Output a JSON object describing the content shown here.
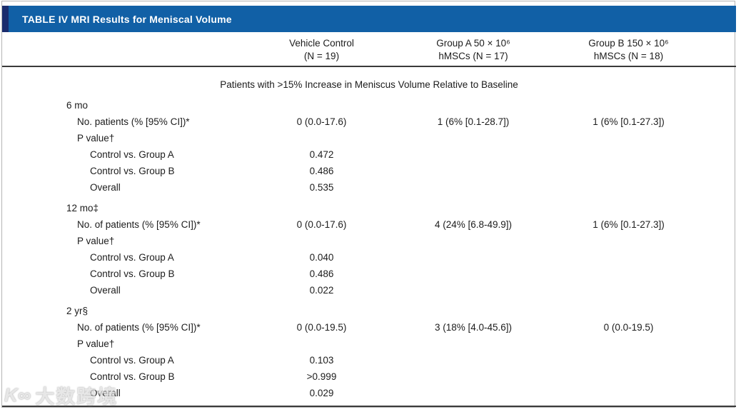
{
  "title_bar": {
    "title": "TABLE IV MRI Results for Meniscal Volume",
    "bg_color": "#1160a6",
    "accent_color": "#1a2d6e"
  },
  "columns": [
    {
      "line1": "Vehicle Control",
      "line2": "(N = 19)"
    },
    {
      "line1": "Group A 50 × 10⁶",
      "line2": "hMSCs (N = 17)"
    },
    {
      "line1": "Group B 150 × 10⁶",
      "line2": "hMSCs (N = 18)"
    }
  ],
  "span_header": "Patients with >15% Increase in Meniscus Volume Relative to Baseline",
  "sections": [
    {
      "label": "6 mo",
      "rows": [
        {
          "label": "No. patients (% [95% CI])*",
          "indent": 1,
          "values": [
            "0 (0.0-17.6)",
            "1 (6% [0.1-28.7])",
            "1 (6% [0.1-27.3])"
          ]
        },
        {
          "label": "P value†",
          "indent": 1,
          "values": [
            "",
            "",
            ""
          ]
        },
        {
          "label": "Control vs. Group A",
          "indent": 2,
          "values": [
            "0.472",
            "",
            ""
          ]
        },
        {
          "label": "Control vs. Group B",
          "indent": 2,
          "values": [
            "0.486",
            "",
            ""
          ]
        },
        {
          "label": "Overall",
          "indent": 2,
          "values": [
            "0.535",
            "",
            ""
          ]
        }
      ]
    },
    {
      "label": "12 mo‡",
      "rows": [
        {
          "label": "No. of patients (% [95% CI])*",
          "indent": 1,
          "values": [
            "0 (0.0-17.6)",
            "4 (24% [6.8-49.9])",
            "1 (6% [0.1-27.3])"
          ]
        },
        {
          "label": "P value†",
          "indent": 1,
          "values": [
            "",
            "",
            ""
          ]
        },
        {
          "label": "Control vs. Group A",
          "indent": 2,
          "values": [
            "0.040",
            "",
            ""
          ]
        },
        {
          "label": "Control vs. Group B",
          "indent": 2,
          "values": [
            "0.486",
            "",
            ""
          ]
        },
        {
          "label": "Overall",
          "indent": 2,
          "values": [
            "0.022",
            "",
            ""
          ]
        }
      ]
    },
    {
      "label": "2 yr§",
      "rows": [
        {
          "label": "No. of patients (% [95% CI])*",
          "indent": 1,
          "values": [
            "0 (0.0-19.5)",
            "3 (18% [4.0-45.6])",
            "0 (0.0-19.5)"
          ]
        },
        {
          "label": "P value†",
          "indent": 1,
          "values": [
            "",
            "",
            ""
          ]
        },
        {
          "label": "Control vs. Group A",
          "indent": 2,
          "values": [
            "0.103",
            "",
            ""
          ]
        },
        {
          "label": "Control vs. Group B",
          "indent": 2,
          "values": [
            ">0.999",
            "",
            ""
          ]
        },
        {
          "label": "Overall",
          "indent": 2,
          "values": [
            "0.029",
            "",
            ""
          ]
        }
      ]
    }
  ],
  "watermark": {
    "logo": "K∞",
    "text": "大数跨境"
  }
}
